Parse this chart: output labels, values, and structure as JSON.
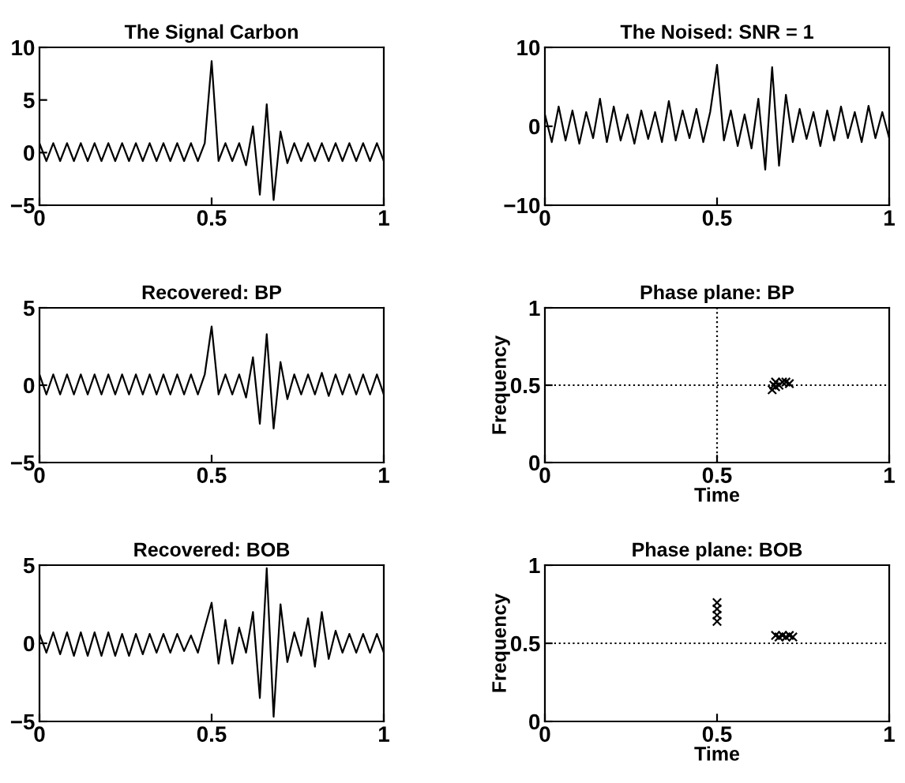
{
  "chart_data": [
    {
      "type": "line",
      "title": "The Signal Carbon",
      "xlim": [
        0,
        1
      ],
      "ylim": [
        -5,
        10
      ],
      "xticks": [
        0,
        0.5,
        1
      ],
      "yticks": [
        -5,
        0,
        5,
        10
      ],
      "grid": false,
      "line_style": "solid",
      "marker": "none",
      "x": [
        0,
        0.02,
        0.04,
        0.06,
        0.08,
        0.1,
        0.12,
        0.14,
        0.16,
        0.18,
        0.2,
        0.22,
        0.24,
        0.26,
        0.28,
        0.3,
        0.32,
        0.34,
        0.36,
        0.38,
        0.4,
        0.42,
        0.44,
        0.46,
        0.48,
        0.5,
        0.52,
        0.54,
        0.56,
        0.58,
        0.6,
        0.62,
        0.64,
        0.66,
        0.68,
        0.7,
        0.72,
        0.74,
        0.76,
        0.78,
        0.8,
        0.82,
        0.84,
        0.86,
        0.88,
        0.9,
        0.92,
        0.94,
        0.96,
        0.98,
        1
      ],
      "series": [
        {
          "color": "#000000",
          "values": [
            0.9,
            -0.8,
            0.9,
            -0.8,
            0.9,
            -0.8,
            0.9,
            -0.8,
            0.9,
            -0.8,
            0.9,
            -0.8,
            0.9,
            -0.8,
            0.9,
            -0.8,
            0.9,
            -0.8,
            0.9,
            -0.8,
            0.9,
            -0.8,
            0.9,
            -0.8,
            0.9,
            8.7,
            -0.8,
            0.9,
            -0.8,
            0.9,
            -1.2,
            2.5,
            -4.0,
            4.6,
            -4.5,
            2.0,
            -1.0,
            0.9,
            -0.8,
            0.9,
            -0.8,
            0.9,
            -0.8,
            0.9,
            -0.8,
            0.9,
            -0.8,
            0.9,
            -0.8,
            0.9,
            -0.8
          ]
        }
      ]
    },
    {
      "type": "line",
      "title": "The Noised: SNR = 1",
      "xlim": [
        0,
        1
      ],
      "ylim": [
        -10,
        10
      ],
      "xticks": [
        0,
        0.5,
        1
      ],
      "yticks": [
        -10,
        0,
        10
      ],
      "grid": false,
      "line_style": "solid",
      "marker": "none",
      "x": [
        0,
        0.02,
        0.04,
        0.06,
        0.08,
        0.1,
        0.12,
        0.14,
        0.16,
        0.18,
        0.2,
        0.22,
        0.24,
        0.26,
        0.28,
        0.3,
        0.32,
        0.34,
        0.36,
        0.38,
        0.4,
        0.42,
        0.44,
        0.46,
        0.48,
        0.5,
        0.52,
        0.54,
        0.56,
        0.58,
        0.6,
        0.62,
        0.64,
        0.66,
        0.68,
        0.7,
        0.72,
        0.74,
        0.76,
        0.78,
        0.8,
        0.82,
        0.84,
        0.86,
        0.88,
        0.9,
        0.92,
        0.94,
        0.96,
        0.98,
        1
      ],
      "series": [
        {
          "color": "#000000",
          "values": [
            1.5,
            -2.0,
            2.5,
            -1.8,
            2.0,
            -2.2,
            1.8,
            -1.5,
            3.5,
            -2.0,
            2.5,
            -1.8,
            1.5,
            -2.2,
            2.0,
            -1.6,
            1.8,
            -2.0,
            3.2,
            -1.8,
            2.0,
            -1.5,
            2.2,
            -2.0,
            1.8,
            7.8,
            -1.8,
            2.0,
            -2.5,
            1.5,
            -2.8,
            3.5,
            -5.5,
            7.5,
            -5.0,
            4.0,
            -2.0,
            2.2,
            -1.6,
            1.8,
            -2.5,
            2.0,
            -1.8,
            2.5,
            -1.5,
            1.8,
            -2.0,
            2.6,
            -1.5,
            1.8,
            -1.5
          ]
        }
      ]
    },
    {
      "type": "line",
      "title": "Recovered: BP",
      "xlim": [
        0,
        1
      ],
      "ylim": [
        -5,
        5
      ],
      "xticks": [
        0,
        0.5,
        1
      ],
      "yticks": [
        -5,
        0,
        5
      ],
      "grid": false,
      "line_style": "solid",
      "marker": "none",
      "x": [
        0,
        0.02,
        0.04,
        0.06,
        0.08,
        0.1,
        0.12,
        0.14,
        0.16,
        0.18,
        0.2,
        0.22,
        0.24,
        0.26,
        0.28,
        0.3,
        0.32,
        0.34,
        0.36,
        0.38,
        0.4,
        0.42,
        0.44,
        0.46,
        0.48,
        0.5,
        0.52,
        0.54,
        0.56,
        0.58,
        0.6,
        0.62,
        0.64,
        0.66,
        0.68,
        0.7,
        0.72,
        0.74,
        0.76,
        0.78,
        0.8,
        0.82,
        0.84,
        0.86,
        0.88,
        0.9,
        0.92,
        0.94,
        0.96,
        0.98,
        1
      ],
      "series": [
        {
          "color": "#000000",
          "values": [
            0.7,
            -0.6,
            0.7,
            -0.6,
            0.7,
            -0.6,
            0.7,
            -0.6,
            0.7,
            -0.6,
            0.7,
            -0.6,
            0.7,
            -0.6,
            0.7,
            -0.6,
            0.7,
            -0.6,
            0.7,
            -0.6,
            0.7,
            -0.6,
            0.7,
            -0.6,
            0.7,
            3.8,
            -0.6,
            0.7,
            -0.6,
            0.7,
            -0.8,
            1.8,
            -2.5,
            3.3,
            -2.8,
            1.5,
            -0.9,
            0.7,
            -0.6,
            0.7,
            -0.6,
            0.8,
            -0.7,
            0.7,
            -0.6,
            0.7,
            -0.6,
            0.7,
            -0.6,
            0.7,
            -0.6
          ]
        }
      ]
    },
    {
      "type": "scatter",
      "title": "Phase plane: BP",
      "xlabel": "Time",
      "ylabel": "Frequency",
      "xlim": [
        0,
        1
      ],
      "ylim": [
        0,
        1
      ],
      "xticks": [
        0,
        0.5,
        1
      ],
      "yticks": [
        0,
        0.5,
        1
      ],
      "grid": false,
      "marker": "cross",
      "ref_lines": [
        {
          "axis": "x",
          "value": 0.5,
          "line_style": "dotted",
          "color": "#000000"
        },
        {
          "axis": "y",
          "value": 0.5,
          "line_style": "dotted",
          "color": "#000000"
        }
      ],
      "series": [
        {
          "color": "#000000",
          "x": [
            0.66,
            0.665,
            0.67,
            0.68,
            0.69,
            0.7,
            0.71,
            0.67
          ],
          "values": [
            0.47,
            0.5,
            0.52,
            0.5,
            0.52,
            0.52,
            0.51,
            0.49
          ]
        }
      ]
    },
    {
      "type": "line",
      "title": "Recovered: BOB",
      "xlim": [
        0,
        1
      ],
      "ylim": [
        -5,
        5
      ],
      "xticks": [
        0,
        0.5,
        1
      ],
      "yticks": [
        -5,
        0,
        5
      ],
      "grid": false,
      "line_style": "solid",
      "marker": "none",
      "x": [
        0,
        0.02,
        0.04,
        0.06,
        0.08,
        0.1,
        0.12,
        0.14,
        0.16,
        0.18,
        0.2,
        0.22,
        0.24,
        0.26,
        0.28,
        0.3,
        0.32,
        0.34,
        0.36,
        0.38,
        0.4,
        0.42,
        0.44,
        0.46,
        0.48,
        0.5,
        0.52,
        0.54,
        0.56,
        0.58,
        0.6,
        0.62,
        0.64,
        0.66,
        0.68,
        0.7,
        0.72,
        0.74,
        0.76,
        0.78,
        0.8,
        0.82,
        0.84,
        0.86,
        0.88,
        0.9,
        0.92,
        0.94,
        0.96,
        0.98,
        1
      ],
      "series": [
        {
          "color": "#000000",
          "values": [
            0.6,
            -0.6,
            0.7,
            -0.7,
            0.7,
            -0.8,
            0.7,
            -0.8,
            0.7,
            -0.8,
            0.7,
            -0.8,
            0.6,
            -0.8,
            0.6,
            -0.7,
            0.6,
            -0.6,
            0.6,
            -0.6,
            0.6,
            -0.5,
            0.5,
            -0.6,
            1.0,
            2.6,
            -1.3,
            1.5,
            -1.3,
            1.0,
            -0.6,
            2.0,
            -3.5,
            4.8,
            -4.7,
            2.5,
            -1.2,
            0.7,
            -0.8,
            1.6,
            -1.5,
            2.0,
            -1.0,
            0.8,
            -0.6,
            0.6,
            -0.6,
            0.6,
            -0.6,
            0.6,
            -0.6
          ]
        }
      ]
    },
    {
      "type": "scatter",
      "title": "Phase plane: BOB",
      "xlabel": "Time",
      "ylabel": "Frequency",
      "xlim": [
        0,
        1
      ],
      "ylim": [
        0,
        1
      ],
      "xticks": [
        0,
        0.5,
        1
      ],
      "yticks": [
        0,
        0.5,
        1
      ],
      "grid": false,
      "marker": "cross",
      "ref_lines": [
        {
          "axis": "y",
          "value": 0.5,
          "line_style": "dotted",
          "color": "#000000"
        }
      ],
      "series": [
        {
          "color": "#000000",
          "x": [
            0.5,
            0.5,
            0.5,
            0.5,
            0.67,
            0.68,
            0.69,
            0.7,
            0.71,
            0.72
          ],
          "values": [
            0.64,
            0.68,
            0.72,
            0.76,
            0.55,
            0.54,
            0.55,
            0.54,
            0.55,
            0.54
          ]
        }
      ]
    }
  ]
}
